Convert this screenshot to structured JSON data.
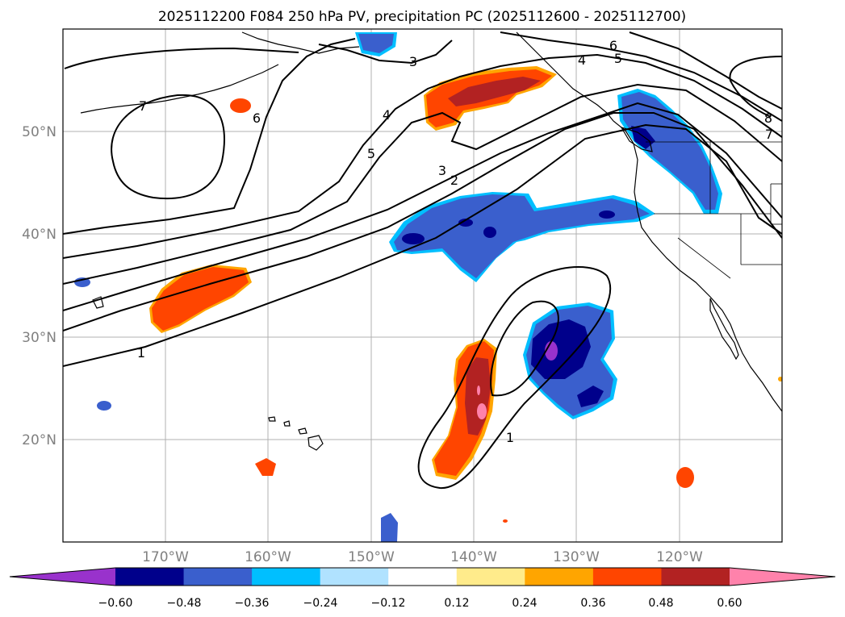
{
  "title": "2025112200 F084 250 hPa PV, precipitation PC (2025112600 - 2025112700)",
  "lat_labels": [
    "50°N",
    "40°N",
    "30°N",
    "20°N"
  ],
  "lon_labels": [
    "170°W",
    "160°W",
    "150°W",
    "140°W",
    "130°W",
    "120°W"
  ],
  "colorbar": {
    "tick_labels": [
      "−0.60",
      "−0.48",
      "−0.36",
      "−0.24",
      "−0.12",
      "0.12",
      "0.24",
      "0.36",
      "0.48",
      "0.60"
    ],
    "colors": [
      "#9932cc",
      "#00008b",
      "#3a5fcd",
      "#00bfff",
      "#b0e2ff",
      "#ffffff",
      "#ffeb8b",
      "#ffa500",
      "#ff4500",
      "#b22222",
      "#ff82ab"
    ]
  },
  "contour_labels": [
    "1",
    "1",
    "2",
    "3",
    "3",
    "4",
    "4",
    "5",
    "5",
    "6",
    "6",
    "7",
    "7",
    "8"
  ]
}
